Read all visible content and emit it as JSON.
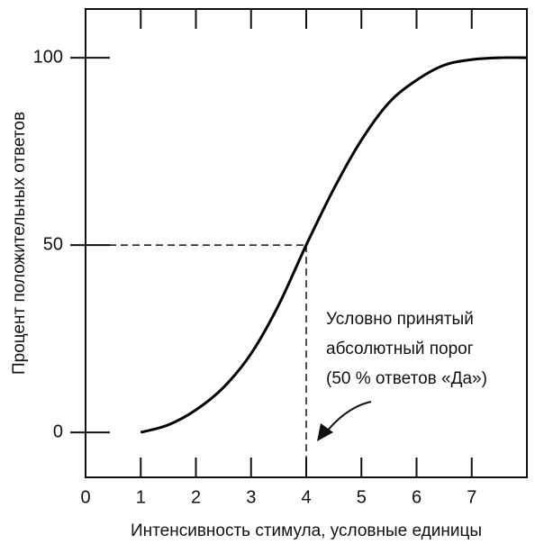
{
  "chart_data": {
    "type": "line",
    "xlabel": "Интенсивность стимула, условные единицы",
    "ylabel": "Процент положительных ответов",
    "x": [
      1,
      1.5,
      2,
      2.5,
      3,
      3.5,
      4,
      4.5,
      5,
      5.5,
      6,
      6.5,
      7,
      7.5,
      8
    ],
    "values": [
      0,
      2,
      6,
      12,
      21,
      34,
      50,
      65,
      78,
      88,
      94,
      98,
      99.5,
      100,
      100
    ],
    "color": "#000000",
    "xlim": [
      0,
      8
    ],
    "xticks": [
      0,
      1,
      2,
      3,
      4,
      5,
      6,
      7
    ],
    "ylim": [
      -12,
      113
    ],
    "yticks": [
      0,
      50,
      100
    ],
    "threshold": {
      "x": 4,
      "y": 50
    },
    "annotation": [
      "Условно принятый",
      "абсолютный порог",
      "(50 % ответов «Да»)"
    ]
  }
}
